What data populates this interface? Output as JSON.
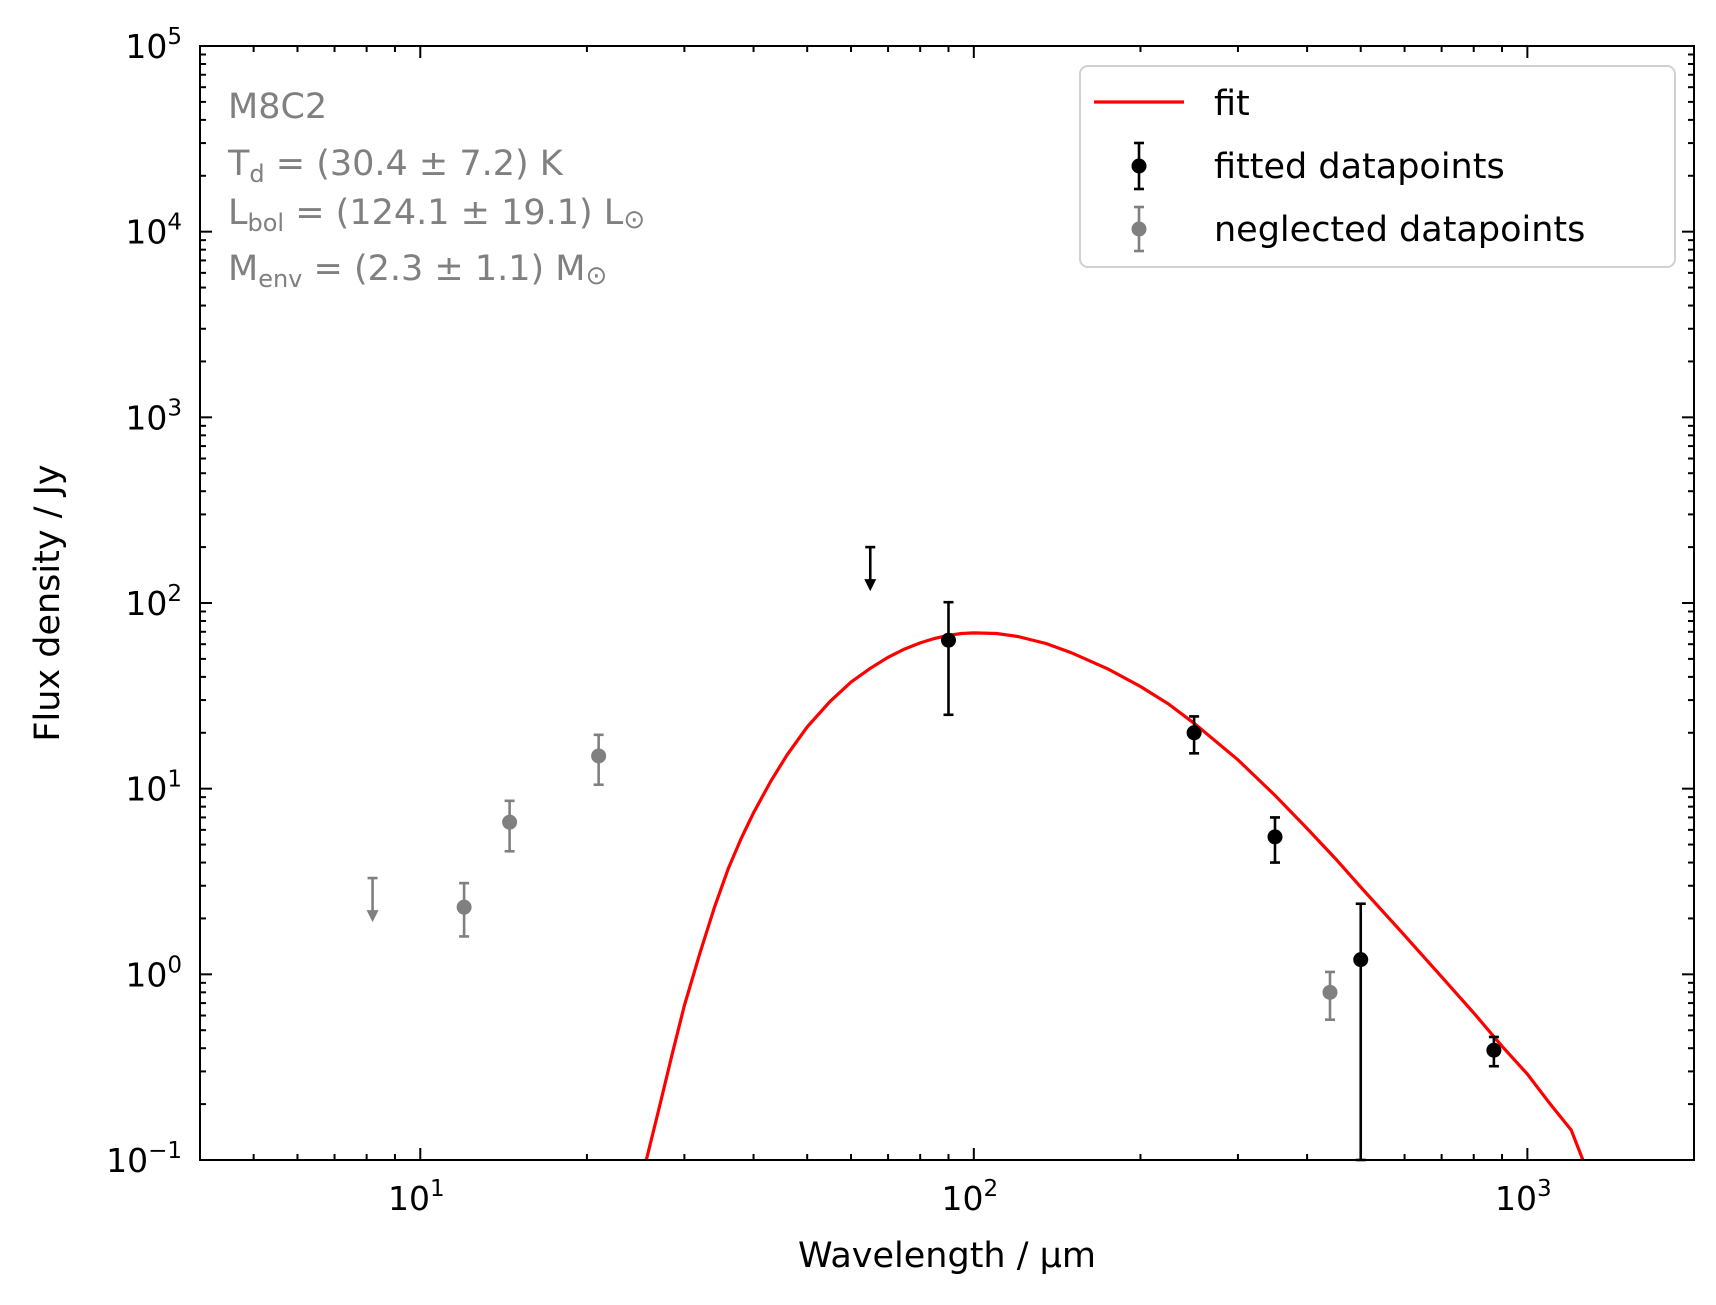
{
  "chart_data": {
    "type": "scatter",
    "source_name": "M8C2",
    "xlabel": "Wavelength / μm",
    "ylabel": "Flux density / Jy",
    "xscale": "log",
    "yscale": "log",
    "xlim": [
      4.0,
      2000
    ],
    "ylim": [
      0.1,
      100000
    ],
    "x_tick_labels": [
      {
        "value": 10,
        "base": "10",
        "exp": "1"
      },
      {
        "value": 100,
        "base": "10",
        "exp": "2"
      },
      {
        "value": 1000,
        "base": "10",
        "exp": "3"
      }
    ],
    "y_tick_labels": [
      {
        "value": 0.1,
        "base": "10",
        "exp": "−1"
      },
      {
        "value": 1,
        "base": "10",
        "exp": "0"
      },
      {
        "value": 10,
        "base": "10",
        "exp": "1"
      },
      {
        "value": 100,
        "base": "10",
        "exp": "2"
      },
      {
        "value": 1000,
        "base": "10",
        "exp": "3"
      },
      {
        "value": 10000,
        "base": "10",
        "exp": "4"
      },
      {
        "value": 100000,
        "base": "10",
        "exp": "5"
      }
    ],
    "annotations": {
      "title": "M8C2",
      "td": {
        "sym": "T",
        "sub": "d",
        "text": " = (30.4 ± 7.2) K"
      },
      "lbol": {
        "sym": "L",
        "sub": "bol",
        "text": " = (124.1 ± 19.1) L",
        "unit": "⊙"
      },
      "menv": {
        "sym": "M",
        "sub": "env",
        "text": " = (2.3 ± 1.1) M",
        "unit": "⊙"
      }
    },
    "legend": {
      "position": "top-right",
      "entries": [
        {
          "label": "fit",
          "kind": "line",
          "color": "#ff0000"
        },
        {
          "label": "fitted datapoints",
          "kind": "errorbar",
          "color": "#000000"
        },
        {
          "label": "neglected datapoints",
          "kind": "errorbar",
          "color": "#808080"
        }
      ]
    },
    "fit": {
      "label": "fit",
      "color": "#ff0000",
      "points": [
        [
          25.6,
          0.1
        ],
        [
          27,
          0.19
        ],
        [
          28.5,
          0.37
        ],
        [
          30,
          0.68
        ],
        [
          32,
          1.3
        ],
        [
          34,
          2.3
        ],
        [
          36,
          3.7
        ],
        [
          38,
          5.4
        ],
        [
          40,
          7.4
        ],
        [
          43,
          11
        ],
        [
          46,
          15.2
        ],
        [
          50,
          21.5
        ],
        [
          55,
          29.5
        ],
        [
          60,
          37.5
        ],
        [
          65,
          44.5
        ],
        [
          70,
          51
        ],
        [
          75,
          56.5
        ],
        [
          80,
          61
        ],
        [
          85,
          64.5
        ],
        [
          90,
          67
        ],
        [
          95,
          68.5
        ],
        [
          100,
          69
        ],
        [
          110,
          68.5
        ],
        [
          120,
          66
        ],
        [
          135,
          60.5
        ],
        [
          150,
          54
        ],
        [
          175,
          44
        ],
        [
          200,
          35.5
        ],
        [
          225,
          28.5
        ],
        [
          250,
          22.5
        ],
        [
          300,
          14.3
        ],
        [
          350,
          9.2
        ],
        [
          400,
          6.1
        ],
        [
          450,
          4.2
        ],
        [
          500,
          2.95
        ],
        [
          600,
          1.62
        ],
        [
          700,
          0.97
        ],
        [
          800,
          0.62
        ],
        [
          900,
          0.41
        ],
        [
          1000,
          0.29
        ],
        [
          1100,
          0.2
        ],
        [
          1200,
          0.145
        ],
        [
          1260,
          0.1
        ]
      ]
    },
    "fitted_datapoints": {
      "label": "fitted datapoints",
      "color": "#000000",
      "points": [
        {
          "x": 90,
          "y": 63,
          "lo": 25,
          "hi": 101
        },
        {
          "x": 250,
          "y": 20,
          "lo": 15.5,
          "hi": 24.5
        },
        {
          "x": 350,
          "y": 5.5,
          "lo": 4.0,
          "hi": 7.0
        },
        {
          "x": 500,
          "y": 1.2,
          "lo": 0.1,
          "hi": 2.4
        },
        {
          "x": 870,
          "y": 0.39,
          "lo": 0.32,
          "hi": 0.46
        }
      ],
      "upper_limits": [
        {
          "x": 65,
          "y": 200
        }
      ]
    },
    "neglected_datapoints": {
      "label": "neglected datapoints",
      "color": "#808080",
      "points": [
        {
          "x": 12,
          "y": 2.3,
          "lo": 1.6,
          "hi": 3.1
        },
        {
          "x": 14.5,
          "y": 6.6,
          "lo": 4.6,
          "hi": 8.6
        },
        {
          "x": 21,
          "y": 15,
          "lo": 10.5,
          "hi": 19.5
        },
        {
          "x": 440,
          "y": 0.8,
          "lo": 0.57,
          "hi": 1.03
        }
      ],
      "upper_limits": [
        {
          "x": 8.2,
          "y": 3.3
        }
      ]
    }
  }
}
